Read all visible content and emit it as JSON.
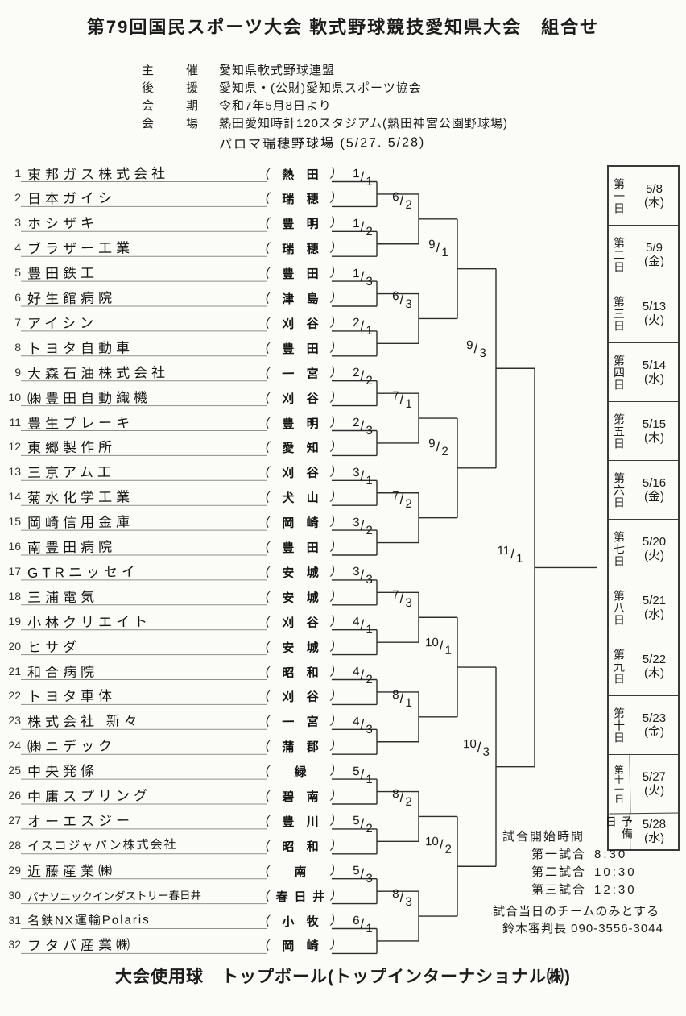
{
  "title": "第79回国民スポーツ大会 軟式野球競技愛知県大会　組合せ",
  "info": {
    "rows": [
      {
        "label": "主催",
        "value": "愛知県軟式野球連盟"
      },
      {
        "label": "後援",
        "value": "愛知県・(公財)愛知県スポーツ協会"
      },
      {
        "label": "会期",
        "value": "令和7年5月8日より"
      },
      {
        "label": "会場",
        "value": "熱田愛知時計120スタジアム(熱田神宮公園野球場)"
      }
    ],
    "venue_handwritten": "パロマ瑞穂野球場 (5/27. 5/28)"
  },
  "teams": [
    {
      "no": "1",
      "name": "東邦ガス株式会社",
      "location": "熱田"
    },
    {
      "no": "2",
      "name": "日本ガイシ",
      "location": "瑞穂"
    },
    {
      "no": "3",
      "name": "ホシザキ",
      "location": "豊明"
    },
    {
      "no": "4",
      "name": "ブラザー工業",
      "location": "瑞穂"
    },
    {
      "no": "5",
      "name": "豊田鉄工",
      "location": "豊田"
    },
    {
      "no": "6",
      "name": "好生館病院",
      "location": "津島"
    },
    {
      "no": "7",
      "name": "アイシン",
      "location": "刈谷"
    },
    {
      "no": "8",
      "name": "トヨタ自動車",
      "location": "豊田"
    },
    {
      "no": "9",
      "name": "大森石油株式会社",
      "location": "一宮"
    },
    {
      "no": "10",
      "name": "㈱豊田自動織機",
      "location": "刈谷"
    },
    {
      "no": "11",
      "name": "豊生ブレーキ",
      "location": "豊明"
    },
    {
      "no": "12",
      "name": "東郷製作所",
      "location": "愛知"
    },
    {
      "no": "13",
      "name": "三京アム工",
      "location": "刈谷"
    },
    {
      "no": "14",
      "name": "菊水化学工業",
      "location": "犬山"
    },
    {
      "no": "15",
      "name": "岡崎信用金庫",
      "location": "岡崎"
    },
    {
      "no": "16",
      "name": "南豊田病院",
      "location": "豊田"
    },
    {
      "no": "17",
      "name": "GTRニッセイ",
      "location": "安城"
    },
    {
      "no": "18",
      "name": "三浦電気",
      "location": "安城"
    },
    {
      "no": "19",
      "name": "小林クリエイト",
      "location": "刈谷"
    },
    {
      "no": "20",
      "name": "ヒサダ",
      "location": "安城"
    },
    {
      "no": "21",
      "name": "和合病院",
      "location": "昭和"
    },
    {
      "no": "22",
      "name": "トヨタ車体",
      "location": "刈谷"
    },
    {
      "no": "23",
      "name": "株式会社 新々",
      "location": "一宮"
    },
    {
      "no": "24",
      "name": "㈱ニデック",
      "location": "蒲郡"
    },
    {
      "no": "25",
      "name": "中央発條",
      "location": "緑"
    },
    {
      "no": "26",
      "name": "中庸スプリング",
      "location": "碧南"
    },
    {
      "no": "27",
      "name": "オーエスジー",
      "location": "豊川"
    },
    {
      "no": "28",
      "name": "イスコジャパン株式会社",
      "location": "昭和"
    },
    {
      "no": "29",
      "name": "近藤産業㈱",
      "location": "南"
    },
    {
      "no": "30",
      "name": "パナソニックインダストリー春日井",
      "location": "春日井"
    },
    {
      "no": "31",
      "name": "名鉄NX運輸Polaris",
      "location": "小牧"
    },
    {
      "no": "32",
      "name": "フタバ産業㈱",
      "location": "岡崎"
    }
  ],
  "bracket": {
    "round1_labels": [
      "1/1",
      "1/2",
      "1/3",
      "2/1",
      "2/2",
      "2/3",
      "3/1",
      "3/2",
      "3/3",
      "4/1",
      "4/2",
      "4/3",
      "5/1",
      "5/2",
      "5/3",
      "6/1"
    ],
    "round2_labels": [
      "6/2",
      "6/3",
      "7/1",
      "7/2",
      "7/3",
      "8/1",
      "8/2",
      "8/3"
    ],
    "round3_labels": [
      "9/1",
      "9/2",
      "10/1",
      "10/2"
    ],
    "semifinal_labels": [
      "9/3",
      "10/3"
    ],
    "final_label": "11/1"
  },
  "schedule": {
    "rows": [
      {
        "day": "第一日",
        "date": "5/8",
        "weekday": "(木)",
        "handwritten": false
      },
      {
        "day": "第二日",
        "date": "5/9",
        "weekday": "(金)",
        "handwritten": false
      },
      {
        "day": "第三日",
        "date": "5/13",
        "weekday": "(火)",
        "handwritten": false
      },
      {
        "day": "第四日",
        "date": "5/14",
        "weekday": "(水)",
        "handwritten": false
      },
      {
        "day": "第五日",
        "date": "5/15",
        "weekday": "(木)",
        "handwritten": false
      },
      {
        "day": "第六日",
        "date": "5/16",
        "weekday": "(金)",
        "handwritten": false
      },
      {
        "day": "第七日",
        "date": "5/20",
        "weekday": "(火)",
        "handwritten": false
      },
      {
        "day": "第八日",
        "date": "5/21",
        "weekday": "(水)",
        "handwritten": false
      },
      {
        "day": "第九日",
        "date": "5/22",
        "weekday": "(木)",
        "handwritten": false
      },
      {
        "day": "第十日",
        "date": "5/23",
        "weekday": "(金)",
        "handwritten": false
      },
      {
        "day": "第十一日",
        "date": "5/27",
        "weekday": "(火)",
        "handwritten": true
      },
      {
        "day": "予備日",
        "date": "5/28",
        "weekday": "(水)",
        "handwritten": true
      }
    ]
  },
  "notes": {
    "heading": "試合開始時間",
    "games": [
      {
        "label": "第一試合",
        "time": "8:30"
      },
      {
        "label": "第二試合",
        "time": "10:30"
      },
      {
        "label": "第三試合",
        "time": "12:30"
      }
    ],
    "note": "試合当日のチームのみとする",
    "umpire": "鈴木審判長 090-3556-3044"
  },
  "footer": "大会使用球　トップボール(トップインターナショナル㈱)"
}
